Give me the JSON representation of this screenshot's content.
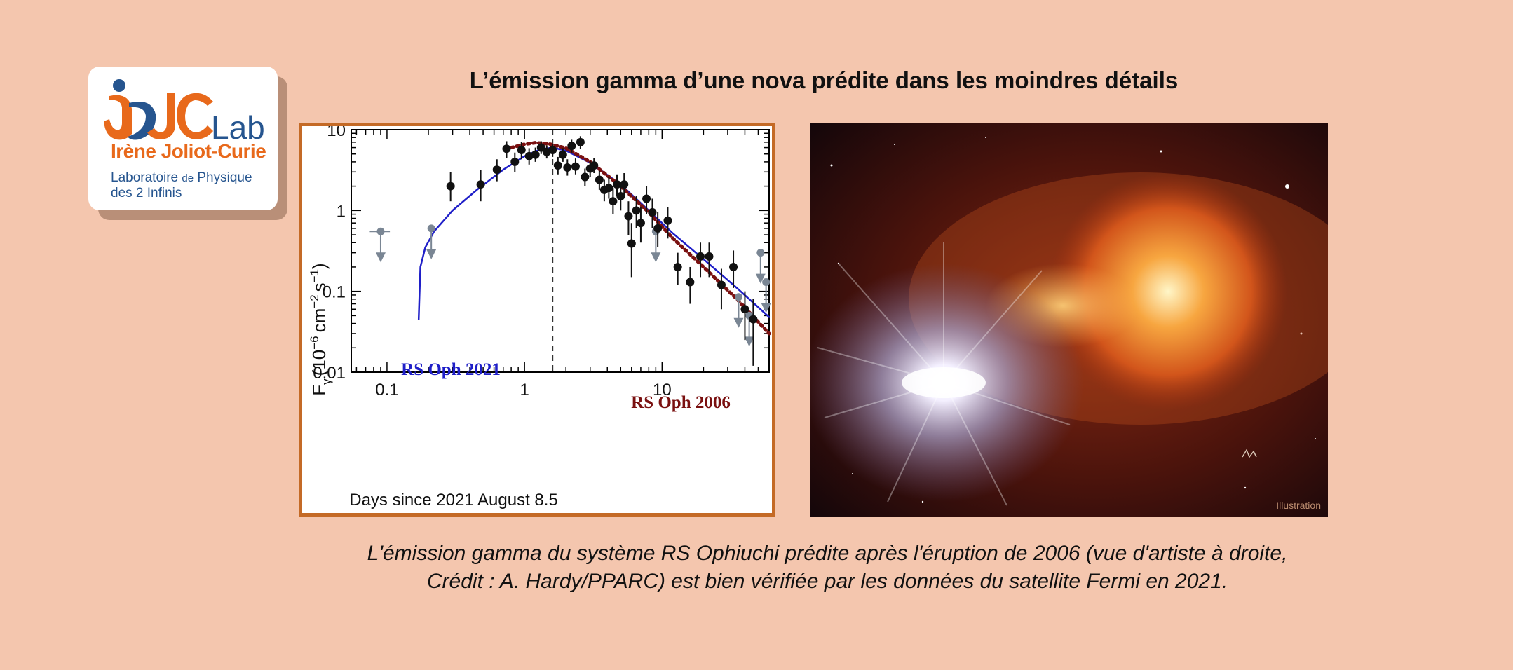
{
  "title": "L’émission gamma d’une nova prédite dans les moindres détails",
  "logo": {
    "lab_word": "Lab",
    "name": "Irène Joliot-Curie",
    "line1_a": "Laboratoire",
    "line1_b": "de",
    "line1_c": "Physique",
    "line2": "des 2 Infinis"
  },
  "illustration": {
    "label": "Illustration"
  },
  "caption": {
    "line1": "L'émission gamma du système RS Ophiuchi prédite après l'éruption de 2006 (vue d'artiste à droite,",
    "line2": "Crédit : A. Hardy/PPARC) est bien vérifiée par les données du satellite Fermi en 2021."
  },
  "colors": {
    "background": "#f4c6ae",
    "frame": "#c46a26",
    "model2021": "#1f1fc8",
    "model2006": "#7a1010",
    "points": "#111111",
    "upper_limits": "#7a8694"
  },
  "chart_data": {
    "type": "scatter",
    "xlabel": "Days since 2021 August 8.5",
    "ylabel_main": "F",
    "ylabel_sub": "γ",
    "ylabel_rest": "(10",
    "ylabel_exp1": "−6",
    "ylabel_mid": "cm",
    "ylabel_exp2": "−2",
    "ylabel_mid2": "s",
    "ylabel_exp3": "−1",
    "ylabel_end": ")",
    "xscale": "log",
    "yscale": "log",
    "xlim": [
      0.055,
      60
    ],
    "ylim": [
      0.01,
      10
    ],
    "xticks": [
      0.1,
      1,
      10
    ],
    "xtick_labels": [
      "0.1",
      "1",
      "10"
    ],
    "yticks": [
      0.01,
      0.1,
      1,
      10
    ],
    "ytick_labels": [
      "0.01",
      "0.1",
      "1",
      "10"
    ],
    "vline_x": 1.6,
    "series": [
      {
        "name": "RS Oph 2021",
        "kind": "model-solid",
        "x": [
          0.17,
          0.175,
          0.19,
          0.22,
          0.3,
          0.45,
          0.7,
          1.0,
          1.3,
          1.6,
          2.0,
          3.0,
          5.0,
          8.0,
          12,
          20,
          35,
          60
        ],
        "y": [
          0.045,
          0.2,
          0.35,
          0.55,
          1.0,
          1.8,
          3.2,
          4.7,
          5.7,
          6.0,
          5.5,
          3.9,
          2.1,
          1.0,
          0.52,
          0.25,
          0.11,
          0.048
        ]
      },
      {
        "name": "RS Oph 2006",
        "kind": "model-dotted",
        "x": [
          0.8,
          1.0,
          1.2,
          1.5,
          2.0,
          3.0,
          5.0,
          8.0,
          12,
          20,
          35,
          60
        ],
        "y": [
          6.0,
          6.6,
          6.9,
          6.7,
          5.9,
          4.0,
          2.0,
          0.95,
          0.45,
          0.2,
          0.08,
          0.03
        ]
      },
      {
        "name": "",
        "kind": "detections",
        "points": [
          {
            "x": 0.29,
            "y": 2.0,
            "lo": 1.3,
            "hi": 3.0
          },
          {
            "x": 0.48,
            "y": 2.1,
            "lo": 1.3,
            "hi": 3.2
          },
          {
            "x": 0.63,
            "y": 3.2,
            "lo": 2.3,
            "hi": 4.3
          },
          {
            "x": 0.74,
            "y": 5.8,
            "lo": 4.5,
            "hi": 7.2
          },
          {
            "x": 0.85,
            "y": 4.0,
            "lo": 3.0,
            "hi": 5.2
          },
          {
            "x": 0.95,
            "y": 5.6,
            "lo": 4.3,
            "hi": 7.0
          },
          {
            "x": 1.08,
            "y": 4.7,
            "lo": 3.7,
            "hi": 5.9
          },
          {
            "x": 1.2,
            "y": 4.9,
            "lo": 4.0,
            "hi": 6.0
          },
          {
            "x": 1.32,
            "y": 6.0,
            "lo": 5.0,
            "hi": 7.2
          },
          {
            "x": 1.45,
            "y": 5.3,
            "lo": 4.4,
            "hi": 6.4
          },
          {
            "x": 1.6,
            "y": 5.6,
            "lo": 4.6,
            "hi": 6.7
          },
          {
            "x": 1.75,
            "y": 3.6,
            "lo": 2.8,
            "hi": 4.6
          },
          {
            "x": 1.9,
            "y": 4.9,
            "lo": 4.0,
            "hi": 5.9
          },
          {
            "x": 2.05,
            "y": 3.4,
            "lo": 2.7,
            "hi": 4.3
          },
          {
            "x": 2.2,
            "y": 6.3,
            "lo": 5.2,
            "hi": 7.5
          },
          {
            "x": 2.35,
            "y": 3.5,
            "lo": 2.8,
            "hi": 4.4
          },
          {
            "x": 2.55,
            "y": 7.0,
            "lo": 5.8,
            "hi": 8.3
          },
          {
            "x": 2.75,
            "y": 2.6,
            "lo": 2.0,
            "hi": 3.3
          },
          {
            "x": 3.0,
            "y": 3.3,
            "lo": 2.6,
            "hi": 4.1
          },
          {
            "x": 3.2,
            "y": 3.6,
            "lo": 2.9,
            "hi": 4.5
          },
          {
            "x": 3.5,
            "y": 2.4,
            "lo": 1.8,
            "hi": 3.1
          },
          {
            "x": 3.8,
            "y": 1.8,
            "lo": 1.3,
            "hi": 2.4
          },
          {
            "x": 4.1,
            "y": 1.9,
            "lo": 1.4,
            "hi": 2.6
          },
          {
            "x": 4.4,
            "y": 1.3,
            "lo": 0.9,
            "hi": 1.9
          },
          {
            "x": 4.7,
            "y": 2.1,
            "lo": 1.5,
            "hi": 2.8
          },
          {
            "x": 5.0,
            "y": 1.5,
            "lo": 1.0,
            "hi": 2.2
          },
          {
            "x": 5.3,
            "y": 2.1,
            "lo": 1.5,
            "hi": 2.9
          },
          {
            "x": 5.7,
            "y": 0.85,
            "lo": 0.5,
            "hi": 1.3
          },
          {
            "x": 6.0,
            "y": 0.39,
            "lo": 0.15,
            "hi": 0.7
          },
          {
            "x": 6.5,
            "y": 1.0,
            "lo": 0.6,
            "hi": 1.5
          },
          {
            "x": 7.0,
            "y": 0.7,
            "lo": 0.4,
            "hi": 1.1
          },
          {
            "x": 7.7,
            "y": 1.4,
            "lo": 0.9,
            "hi": 2.0
          },
          {
            "x": 8.5,
            "y": 0.95,
            "lo": 0.6,
            "hi": 1.4
          },
          {
            "x": 9.3,
            "y": 0.6,
            "lo": 0.35,
            "hi": 0.95
          },
          {
            "x": 11.0,
            "y": 0.75,
            "lo": 0.45,
            "hi": 1.1
          },
          {
            "x": 13.0,
            "y": 0.2,
            "lo": 0.12,
            "hi": 0.3
          },
          {
            "x": 16.0,
            "y": 0.13,
            "lo": 0.07,
            "hi": 0.2
          },
          {
            "x": 19.0,
            "y": 0.27,
            "lo": 0.15,
            "hi": 0.4
          },
          {
            "x": 22.0,
            "y": 0.27,
            "lo": 0.15,
            "hi": 0.4
          },
          {
            "x": 27.0,
            "y": 0.12,
            "lo": 0.06,
            "hi": 0.19
          },
          {
            "x": 33.0,
            "y": 0.2,
            "lo": 0.11,
            "hi": 0.32
          },
          {
            "x": 40.0,
            "y": 0.06,
            "lo": 0.025,
            "hi": 0.1
          },
          {
            "x": 46.0,
            "y": 0.045,
            "lo": 0.012,
            "hi": 0.08
          }
        ]
      },
      {
        "name": "",
        "kind": "upper-limits",
        "points": [
          {
            "x": 0.09,
            "y": 0.55,
            "xlo": 0.075,
            "xhi": 0.105
          },
          {
            "x": 0.21,
            "y": 0.6,
            "xlo": 0.205,
            "xhi": 0.215
          },
          {
            "x": 9.0,
            "y": 0.55,
            "xlo": 8.6,
            "xhi": 9.4
          },
          {
            "x": 36.0,
            "y": 0.085,
            "xlo": 35,
            "xhi": 37
          },
          {
            "x": 43.0,
            "y": 0.05,
            "xlo": 42,
            "xhi": 44
          },
          {
            "x": 52.0,
            "y": 0.3,
            "xlo": 51,
            "xhi": 53
          },
          {
            "x": 57.0,
            "y": 0.13,
            "xlo": 56,
            "xhi": 58
          }
        ]
      }
    ],
    "annotations": [
      {
        "text": "RS Oph 2021",
        "series": "RS Oph 2021"
      },
      {
        "text": "RS Oph 2006",
        "series": "RS Oph 2006"
      }
    ]
  }
}
